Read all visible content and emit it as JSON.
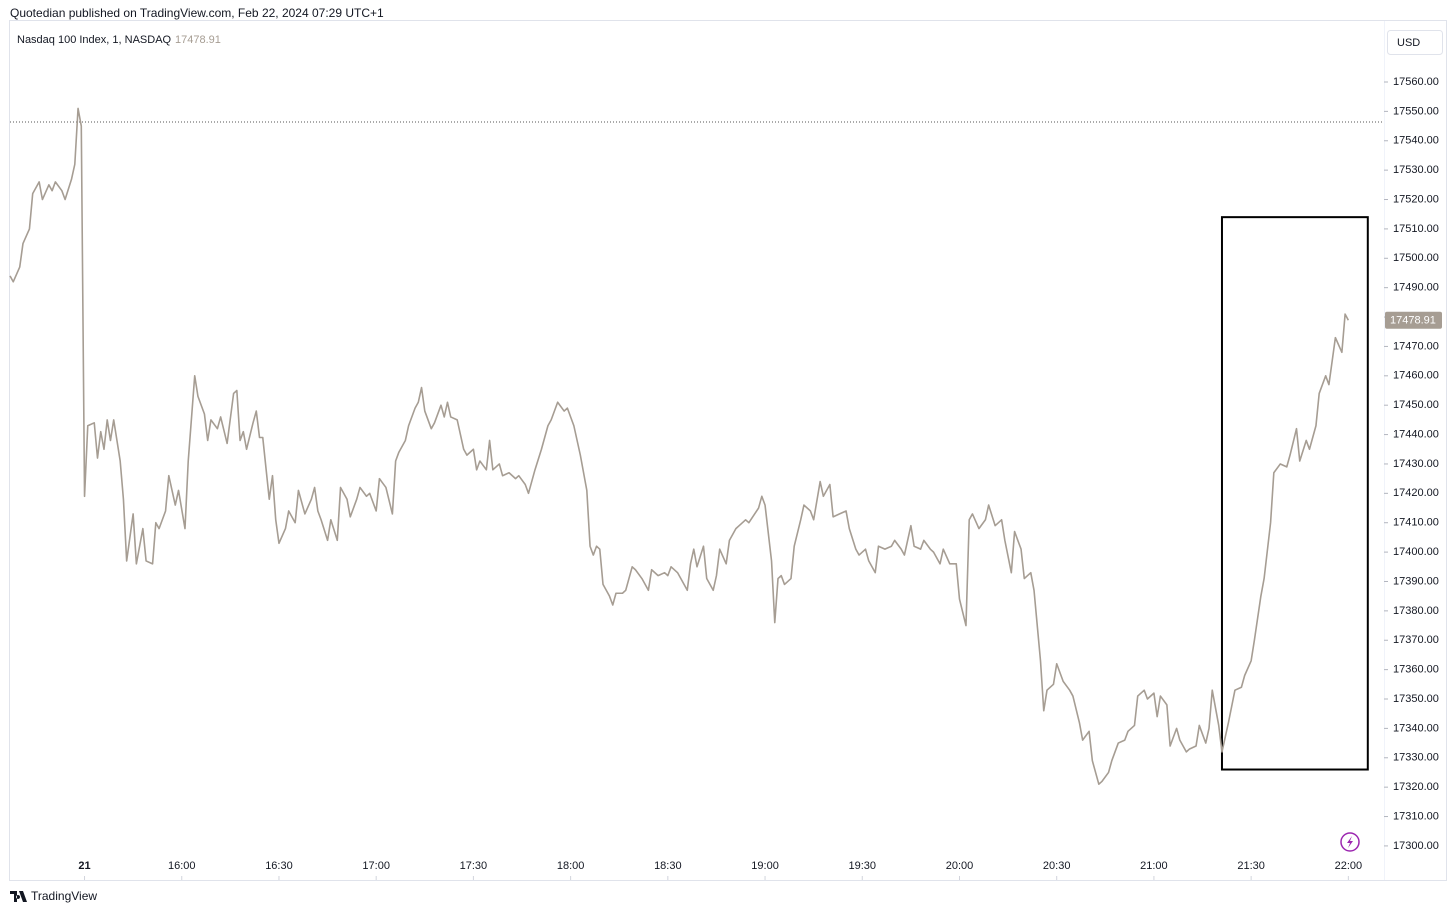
{
  "header": {
    "publisher": "Quotedian published on TradingView.com, Feb 22, 2024 07:29 UTC+1",
    "footer": "TradingView"
  },
  "chart_data": {
    "type": "line",
    "title": "Nasdaq 100 Index, 1, NASDAQ",
    "currency": "USD",
    "color": "#a69d93",
    "grid": false,
    "x": [
      "15:07",
      "15:08",
      "15:10",
      "15:11",
      "15:13",
      "15:14",
      "15:16",
      "15:17",
      "15:19",
      "15:20",
      "15:21",
      "15:23",
      "15:24",
      "15:26",
      "15:27",
      "15:28",
      "15:29",
      "15:30",
      "15:31",
      "15:33",
      "15:34",
      "15:35",
      "15:36",
      "15:37",
      "15:38",
      "15:39",
      "15:41",
      "15:42",
      "15:43",
      "15:45",
      "15:46",
      "15:48",
      "15:49",
      "15:51",
      "15:52",
      "15:53",
      "15:55",
      "15:56",
      "15:58",
      "15:59",
      "16:01",
      "16:02",
      "16:04",
      "16:05",
      "16:07",
      "16:08",
      "16:09",
      "16:11",
      "16:12",
      "16:14",
      "16:16",
      "16:17",
      "16:18",
      "16:19",
      "16:20",
      "16:22",
      "16:23",
      "16:24",
      "16:25",
      "16:27",
      "16:28",
      "16:29",
      "16:30",
      "16:32",
      "16:33",
      "16:35",
      "16:36",
      "16:38",
      "16:40",
      "16:41",
      "16:42",
      "16:43",
      "16:45",
      "16:46",
      "16:48",
      "16:49",
      "16:51",
      "16:52",
      "16:54",
      "16:55",
      "16:57",
      "16:58",
      "17:00",
      "17:01",
      "17:03",
      "17:05",
      "17:06",
      "17:07",
      "17:09",
      "17:10",
      "17:12",
      "17:13",
      "17:14",
      "17:15",
      "17:17",
      "17:18",
      "17:20",
      "17:21",
      "17:22",
      "17:23",
      "17:25",
      "17:27",
      "17:28",
      "17:30",
      "17:31",
      "17:32",
      "17:34",
      "17:35",
      "17:36",
      "17:38",
      "17:39",
      "17:41",
      "17:43",
      "17:44",
      "17:46",
      "17:47",
      "17:49",
      "17:51",
      "17:53",
      "17:54",
      "17:56",
      "17:58",
      "17:59",
      "18:01",
      "18:03",
      "18:05",
      "18:06",
      "18:07",
      "18:08",
      "18:09",
      "18:10",
      "18:12",
      "18:13",
      "18:14",
      "18:16",
      "18:17",
      "18:19",
      "18:20",
      "18:22",
      "18:24",
      "18:25",
      "18:27",
      "18:29",
      "18:30",
      "18:31",
      "18:33",
      "18:34",
      "18:36",
      "18:37",
      "18:38",
      "18:39",
      "18:41",
      "18:42",
      "18:44",
      "18:45",
      "18:46",
      "18:48",
      "18:49",
      "18:51",
      "18:52",
      "18:54",
      "18:55",
      "18:58",
      "18:59",
      "19:00",
      "19:02",
      "19:03",
      "19:04",
      "19:05",
      "19:06",
      "19:08",
      "19:09",
      "19:11",
      "19:12",
      "19:14",
      "19:15",
      "19:17",
      "19:18",
      "19:20",
      "19:21",
      "19:23",
      "19:25",
      "19:26",
      "19:28",
      "19:29",
      "19:31",
      "19:32",
      "19:34",
      "19:35",
      "19:37",
      "19:39",
      "19:40",
      "19:42",
      "19:43",
      "19:45",
      "19:46",
      "19:48",
      "19:49",
      "19:51",
      "19:52",
      "19:54",
      "19:55",
      "19:57",
      "19:59",
      "20:00",
      "20:02",
      "20:03",
      "20:04",
      "20:06",
      "20:08",
      "20:09",
      "20:11",
      "20:13",
      "20:14",
      "20:16",
      "20:17",
      "20:19",
      "20:20",
      "20:22",
      "20:23",
      "20:25",
      "20:26",
      "20:27",
      "20:29",
      "20:30",
      "20:32",
      "20:34",
      "20:35",
      "20:37",
      "20:38",
      "20:40",
      "20:41",
      "20:43",
      "20:44",
      "20:46",
      "20:47",
      "20:49",
      "20:51",
      "20:52",
      "20:54",
      "20:55",
      "20:57",
      "20:58",
      "21:00",
      "21:01",
      "21:02",
      "21:04",
      "21:05",
      "21:07",
      "21:08",
      "21:10",
      "21:11",
      "21:13",
      "21:14",
      "21:16",
      "21:17",
      "21:18",
      "21:20",
      "21:21",
      "21:23",
      "21:25",
      "21:27",
      "21:28",
      "21:30",
      "21:31",
      "21:33",
      "21:34",
      "21:36",
      "21:37",
      "21:39",
      "21:41",
      "21:42",
      "21:44",
      "21:45",
      "21:47",
      "21:48",
      "21:50",
      "21:51",
      "21:53",
      "21:54",
      "21:56",
      "21:58",
      "21:59",
      "22:00"
    ],
    "values": [
      17494,
      17492,
      17497,
      17505,
      17510,
      17522,
      17526,
      17520,
      17525,
      17523,
      17526,
      17523,
      17520,
      17527,
      17532,
      17551,
      17545,
      17419,
      17443,
      17444,
      17432,
      17441,
      17435,
      17445,
      17438,
      17445,
      17431,
      17418,
      17397,
      17413,
      17396,
      17408,
      17397,
      17396,
      17410,
      17408,
      17414,
      17426,
      17416,
      17421,
      17408,
      17431,
      17460,
      17453,
      17447,
      17438,
      17445,
      17442,
      17446,
      17437,
      17454,
      17455,
      17438,
      17441,
      17435,
      17444,
      17448,
      17439,
      17439,
      17418,
      17426,
      17411,
      17403,
      17408,
      17414,
      17410,
      17421,
      17413,
      17418,
      17422,
      17414,
      17411,
      17404,
      17411,
      17404,
      17422,
      17418,
      17412,
      17418,
      17422,
      17419,
      17420,
      17414,
      17425,
      17422,
      17413,
      17431,
      17434,
      17438,
      17443,
      17449,
      17451,
      17456,
      17448,
      17442,
      17444,
      17450,
      17446,
      17451,
      17446,
      17445,
      17435,
      17433,
      17435,
      17428,
      17431,
      17428,
      17438,
      17428,
      17430,
      17426,
      17427,
      17425,
      17426,
      17423,
      17420,
      17428,
      17435,
      17443,
      17445,
      17451,
      17448,
      17449,
      17443,
      17433,
      17421,
      17402,
      17399,
      17402,
      17401,
      17389,
      17385,
      17382,
      17386,
      17386,
      17387,
      17395,
      17394,
      17391,
      17387,
      17394,
      17392,
      17393,
      17392,
      17395,
      17393,
      17391,
      17387,
      17396,
      17401,
      17395,
      17402,
      17391,
      17387,
      17392,
      17401,
      17396,
      17404,
      17408,
      17409,
      17411,
      17410,
      17415,
      17419,
      17416,
      17397,
      17376,
      17391,
      17392,
      17389,
      17391,
      17402,
      17411,
      17416,
      17414,
      17411,
      17424,
      17419,
      17423,
      17412,
      17413,
      17414,
      17408,
      17401,
      17399,
      17401,
      17397,
      17393,
      17402,
      17401,
      17402,
      17404,
      17401,
      17399,
      17409,
      17402,
      17401,
      17404,
      17401,
      17400,
      17396,
      17401,
      17396,
      17396,
      17384,
      17375,
      17411,
      17413,
      17408,
      17411,
      17416,
      17409,
      17411,
      17404,
      17393,
      17407,
      17401,
      17391,
      17393,
      17387,
      17363,
      17346,
      17353,
      17355,
      17362,
      17356,
      17353,
      17351,
      17342,
      17336,
      17339,
      17329,
      17321,
      17322,
      17325,
      17329,
      17335,
      17336,
      17339,
      17341,
      17351,
      17353,
      17350,
      17352,
      17344,
      17351,
      17348,
      17334,
      17340,
      17336,
      17332,
      17333,
      17334,
      17341,
      17335,
      17340,
      17353,
      17341,
      17332,
      17342,
      17353,
      17354,
      17358,
      17363,
      17370,
      17385,
      17391,
      17410,
      17427,
      17430,
      17429,
      17433,
      17442,
      17431,
      17438,
      17435,
      17443,
      17454,
      17460,
      17457,
      17473,
      17468,
      17481,
      17478.91
    ],
    "reference_line": 17546.4,
    "box": {
      "x": [
        "21:21",
        "22:06"
      ],
      "y": [
        17326,
        17514
      ]
    },
    "xlim": [
      "15:07",
      "22:11"
    ],
    "xticks": [
      {
        "value": "15:30",
        "label": "21"
      },
      "16:00",
      "16:30",
      "17:00",
      "17:30",
      "18:00",
      "18:30",
      "19:00",
      "19:30",
      "20:00",
      "20:30",
      "21:00",
      "21:30",
      "22:00"
    ],
    "ylim": [
      17288.4,
      17581.1
    ],
    "yticks": [
      {
        "value": 17300,
        "label": "17300.00"
      },
      {
        "value": 17310,
        "label": "17310.00"
      },
      {
        "value": 17320,
        "label": "17320.00"
      },
      {
        "value": 17330,
        "label": "17330.00"
      },
      {
        "value": 17340,
        "label": "17340.00"
      },
      {
        "value": 17350,
        "label": "17350.00"
      },
      {
        "value": 17360,
        "label": "17360.00"
      },
      {
        "value": 17370,
        "label": "17370.00"
      },
      {
        "value": 17380,
        "label": "17380.00"
      },
      {
        "value": 17390,
        "label": "17390.00"
      },
      {
        "value": 17400,
        "label": "17400.00"
      },
      {
        "value": 17410,
        "label": "17410.00"
      },
      {
        "value": 17420,
        "label": "17420.00"
      },
      {
        "value": 17430,
        "label": "17430.00"
      },
      {
        "value": 17440,
        "label": "17440.00"
      },
      {
        "value": 17450,
        "label": "17450.00"
      },
      {
        "value": 17460,
        "label": "17460.00"
      },
      {
        "value": 17470,
        "label": "17470.00"
      },
      {
        "value": 17480,
        "label": "17480.00"
      },
      {
        "value": 17490,
        "label": "17490.00"
      },
      {
        "value": 17500,
        "label": "17500.00"
      },
      {
        "value": 17510,
        "label": "17510.00"
      },
      {
        "value": 17520,
        "label": "17520.00"
      },
      {
        "value": 17530,
        "label": "17530.00"
      },
      {
        "value": 17540,
        "label": "17540.00"
      },
      {
        "value": 17550,
        "label": "17550.00"
      },
      {
        "value": 17560,
        "label": "17560.00"
      }
    ]
  }
}
